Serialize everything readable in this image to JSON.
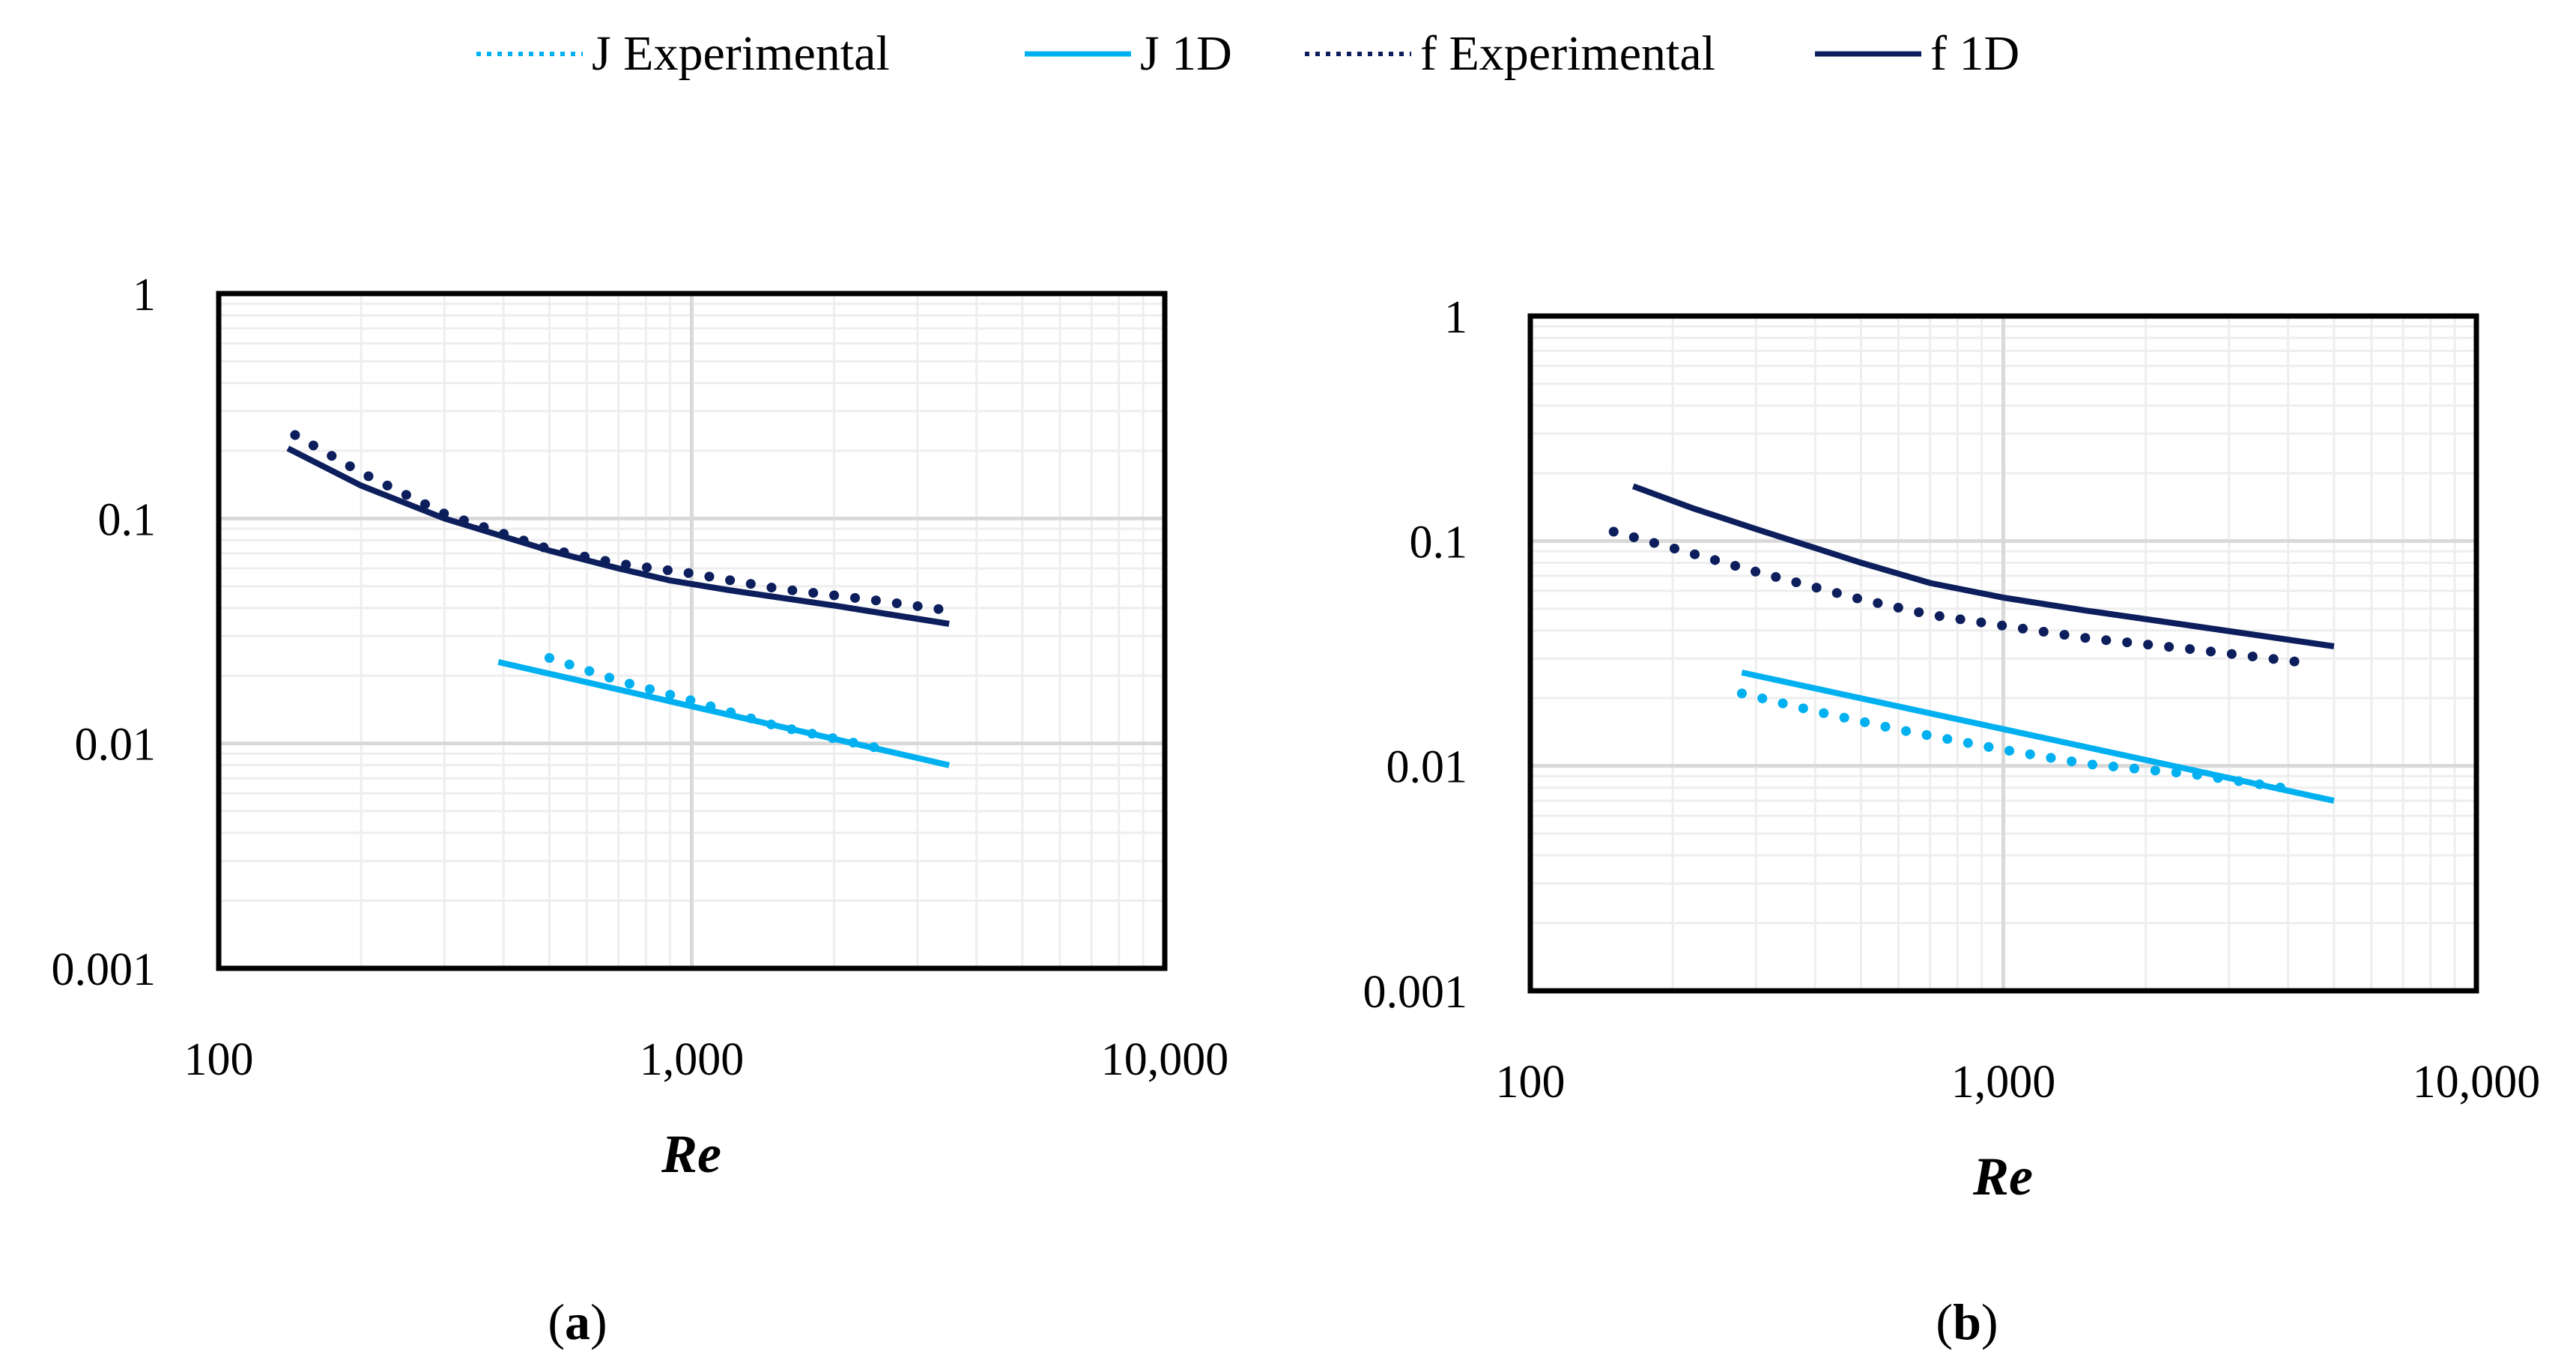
{
  "legend": {
    "items": [
      {
        "label": "J Experimental",
        "series": "J Experimental"
      },
      {
        "label": "J 1D",
        "series": "J 1D"
      },
      {
        "label": "f Experimental",
        "series": "f Experimental"
      },
      {
        "label": "f 1D",
        "series": "f 1D"
      }
    ]
  },
  "colors": {
    "J": "#00b0f0",
    "f": "#0c1e5c",
    "grid_major": "#d9d9d9",
    "grid_minor": "#eeeeee",
    "axis": "#000000"
  },
  "chart_data": [
    {
      "type": "line",
      "caption_open": "(",
      "caption_letter": "a",
      "caption_close": ")",
      "x_scale": "log",
      "y_scale": "log",
      "xlim": [
        100,
        10000
      ],
      "ylim": [
        0.001,
        1
      ],
      "xlabel": "Re",
      "ylabel": "",
      "x_ticks": [
        {
          "value": 100,
          "label": "100"
        },
        {
          "value": 1000,
          "label": "1,000"
        },
        {
          "value": 10000,
          "label": "10,000"
        }
      ],
      "y_ticks": [
        {
          "value": 1,
          "label": "1"
        },
        {
          "value": 0.1,
          "label": "0.1"
        },
        {
          "value": 0.01,
          "label": "0.01"
        },
        {
          "value": 0.001,
          "label": "0.001"
        }
      ],
      "grid": true,
      "series": [
        {
          "name": "f Experimental",
          "style": "dotted",
          "color_key": "f",
          "x": [
            145,
            200,
            300,
            500,
            700,
            1000,
            1500,
            2500,
            3500
          ],
          "y": [
            0.235,
            0.16,
            0.105,
            0.073,
            0.063,
            0.057,
            0.049,
            0.043,
            0.039
          ]
        },
        {
          "name": "f 1D",
          "style": "solid",
          "color_key": "f",
          "x": [
            140,
            200,
            300,
            500,
            700,
            900,
            1200,
            2000,
            3500
          ],
          "y": [
            0.205,
            0.14,
            0.1,
            0.072,
            0.06,
            0.053,
            0.048,
            0.041,
            0.034
          ]
        },
        {
          "name": "J Experimental",
          "style": "dotted",
          "color_key": "J",
          "x": [
            500,
            700,
            1000,
            1500,
            2500
          ],
          "y": [
            0.024,
            0.019,
            0.0155,
            0.012,
            0.0095
          ]
        },
        {
          "name": "J 1D",
          "style": "solid",
          "color_key": "J",
          "x": [
            390,
            3500
          ],
          "y": [
            0.023,
            0.008
          ]
        }
      ]
    },
    {
      "type": "line",
      "caption_open": "(",
      "caption_letter": "b",
      "caption_close": ")",
      "x_scale": "log",
      "y_scale": "log",
      "xlim": [
        100,
        10000
      ],
      "ylim": [
        0.001,
        1
      ],
      "xlabel": "Re",
      "ylabel": "",
      "x_ticks": [
        {
          "value": 100,
          "label": "100"
        },
        {
          "value": 1000,
          "label": "1,000"
        },
        {
          "value": 10000,
          "label": "10,000"
        }
      ],
      "y_ticks": [
        {
          "value": 1,
          "label": "1"
        },
        {
          "value": 0.1,
          "label": "0.1"
        },
        {
          "value": 0.01,
          "label": "0.01"
        },
        {
          "value": 0.001,
          "label": "0.001"
        }
      ],
      "grid": true,
      "series": [
        {
          "name": "f Experimental",
          "style": "dotted",
          "color_key": "f",
          "x": [
            150,
            200,
            300,
            500,
            700,
            1000,
            1500,
            2500,
            4200
          ],
          "y": [
            0.11,
            0.093,
            0.073,
            0.055,
            0.047,
            0.042,
            0.037,
            0.033,
            0.029
          ]
        },
        {
          "name": "f 1D",
          "style": "solid",
          "color_key": "f",
          "x": [
            165,
            220,
            300,
            500,
            700,
            1000,
            1500,
            2500,
            5000
          ],
          "y": [
            0.175,
            0.14,
            0.113,
            0.08,
            0.065,
            0.056,
            0.049,
            0.042,
            0.034
          ]
        },
        {
          "name": "J Experimental",
          "style": "dotted",
          "color_key": "J",
          "x": [
            280,
            400,
            600,
            1000,
            1500,
            2500,
            4200
          ],
          "y": [
            0.021,
            0.0175,
            0.0145,
            0.0118,
            0.0102,
            0.0092,
            0.0078
          ]
        },
        {
          "name": "J 1D",
          "style": "solid",
          "color_key": "J",
          "x": [
            280,
            5000
          ],
          "y": [
            0.026,
            0.007
          ]
        }
      ]
    }
  ]
}
